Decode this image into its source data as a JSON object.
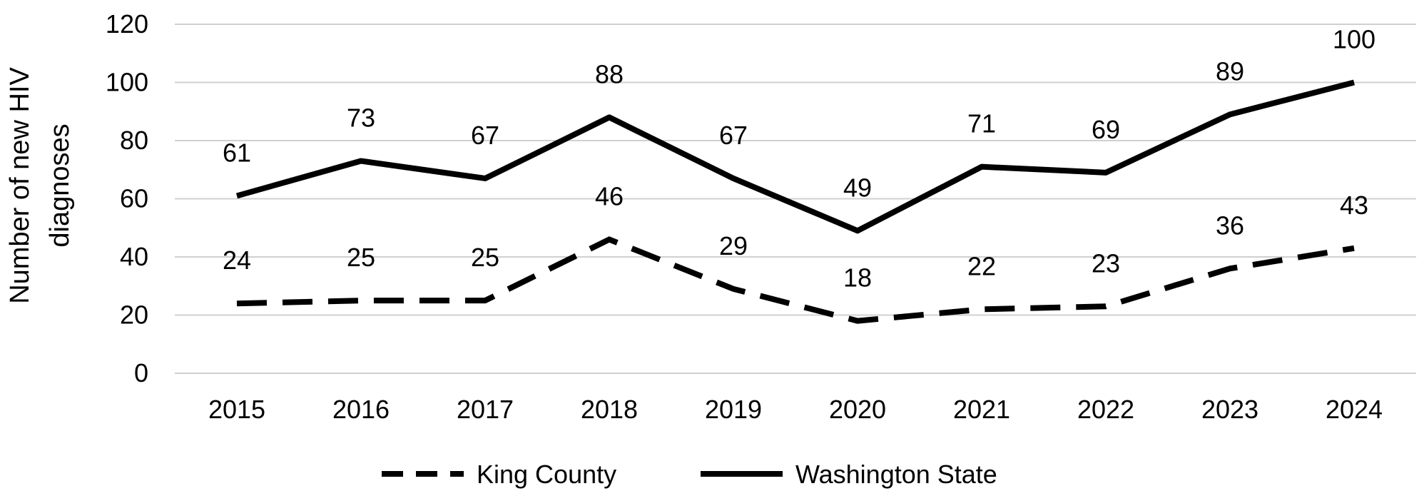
{
  "chart_data": {
    "type": "line",
    "title": "",
    "ylabel": [
      "Number of new HIV",
      "diagnoses"
    ],
    "xlabel": "",
    "categories": [
      "2015",
      "2016",
      "2017",
      "2018",
      "2019",
      "2020",
      "2021",
      "2022",
      "2023",
      "2024"
    ],
    "ylim": [
      0,
      120
    ],
    "yticks": [
      "0",
      "20",
      "40",
      "60",
      "80",
      "100",
      "120"
    ],
    "grid": true,
    "legend_position": "bottom",
    "series": [
      {
        "name": "King County",
        "style": "dashed",
        "color": "#000000",
        "values": [
          24,
          25,
          25,
          46,
          29,
          18,
          22,
          23,
          36,
          43
        ]
      },
      {
        "name": "Washington State",
        "style": "solid",
        "color": "#000000",
        "values": [
          61,
          73,
          67,
          88,
          67,
          49,
          71,
          69,
          89,
          100
        ]
      }
    ]
  }
}
